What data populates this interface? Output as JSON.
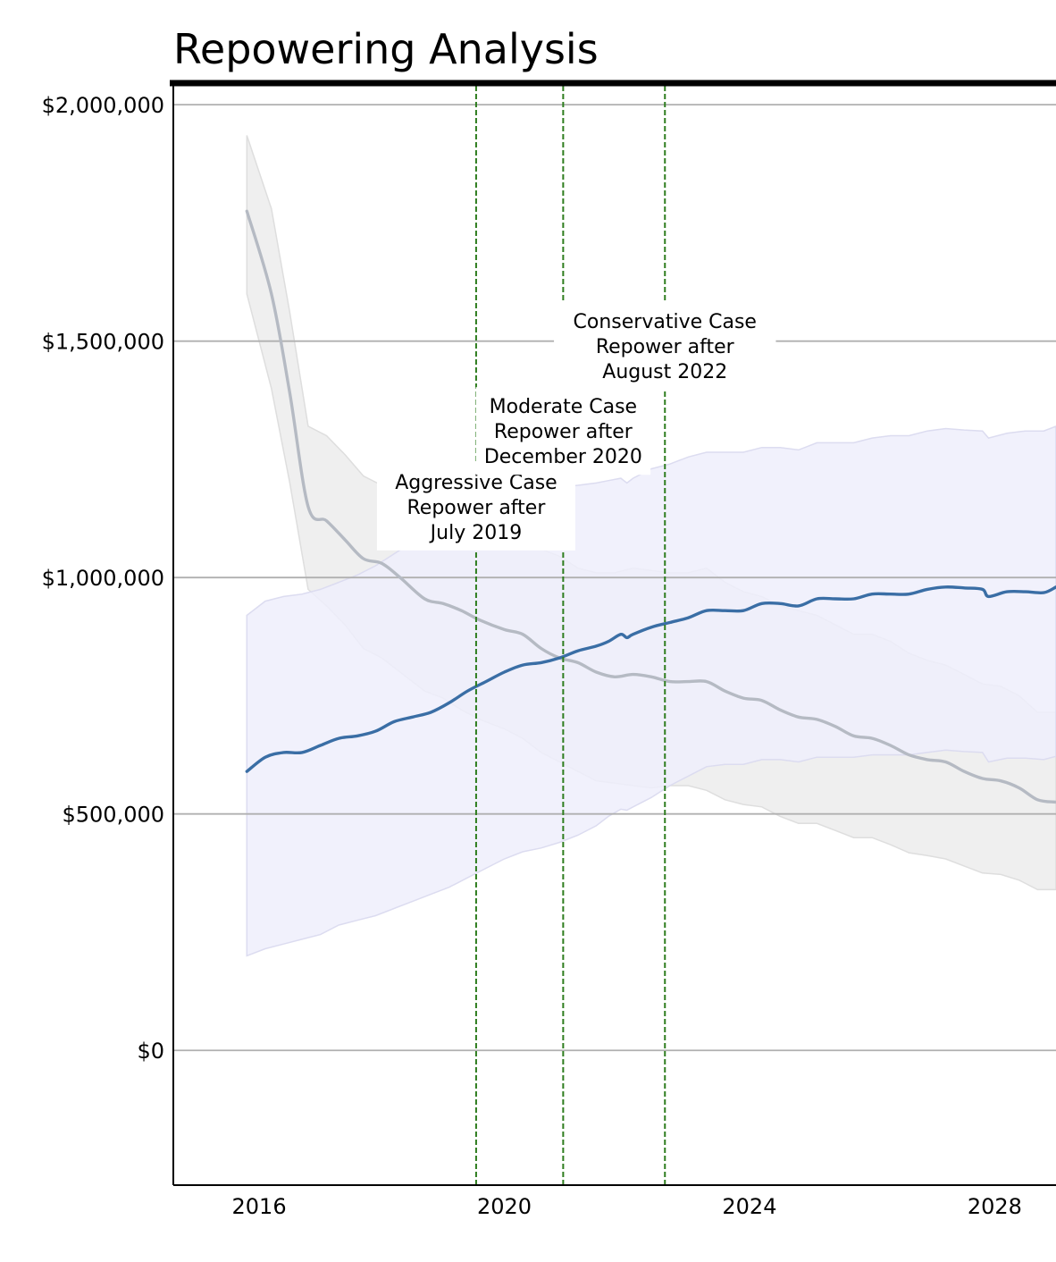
{
  "chart_data": {
    "type": "line",
    "title": "Repowering Analysis",
    "xlabel": "",
    "ylabel": "",
    "xlim": [
      2014.6,
      2029.0
    ],
    "ylim": [
      -285000,
      2040000
    ],
    "grid": "horizontal",
    "y_ticks": [
      {
        "value": 2000000,
        "label": "$2,000,000"
      },
      {
        "value": 1500000,
        "label": "$1,500,000"
      },
      {
        "value": 1000000,
        "label": "$1,000,000"
      },
      {
        "value": 500000,
        "label": "$500,000"
      },
      {
        "value": 0,
        "label": "$0"
      }
    ],
    "x_ticks": [
      {
        "value": 2016,
        "label": "2016"
      },
      {
        "value": 2020,
        "label": "2020"
      },
      {
        "value": 2024,
        "label": "2024"
      },
      {
        "value": 2028,
        "label": "2028"
      }
    ],
    "colors": {
      "rising_line": "#3a6ea5",
      "rising_band": "#eeeefb",
      "falling_line": "#b5bac3",
      "falling_band": "#ececec",
      "marker": "#2e7d1e",
      "grid": "#b0b0b0"
    },
    "series": [
      {
        "role": "falling",
        "x": [
          2015.8,
          2016.2,
          2016.5,
          2016.8,
          2017.1,
          2017.4,
          2017.7,
          2018.0,
          2018.3,
          2018.7,
          2019.0,
          2019.3,
          2019.6,
          2020.0,
          2020.3,
          2020.6,
          2020.9,
          2021.2,
          2021.5,
          2021.8,
          2022.1,
          2022.4,
          2022.7,
          2023.0,
          2023.3,
          2023.6,
          2023.9,
          2024.2,
          2024.5,
          2024.8,
          2025.1,
          2025.4,
          2025.7,
          2026.0,
          2026.3,
          2026.6,
          2026.9,
          2027.2,
          2027.5,
          2027.8,
          2028.1,
          2028.4,
          2028.7,
          2029.0
        ],
        "y": [
          1775000,
          1600000,
          1390000,
          1150000,
          1120000,
          1080000,
          1040000,
          1030000,
          1000000,
          955000,
          945000,
          930000,
          910000,
          890000,
          880000,
          850000,
          830000,
          820000,
          800000,
          790000,
          795000,
          790000,
          780000,
          780000,
          780000,
          760000,
          745000,
          740000,
          720000,
          705000,
          700000,
          685000,
          665000,
          660000,
          645000,
          625000,
          615000,
          610000,
          590000,
          575000,
          570000,
          555000,
          530000,
          525000
        ],
        "lower": [
          1600000,
          1400000,
          1200000,
          975000,
          940000,
          900000,
          850000,
          830000,
          800000,
          760000,
          745000,
          720000,
          700000,
          680000,
          660000,
          630000,
          610000,
          590000,
          570000,
          565000,
          560000,
          555000,
          560000,
          560000,
          550000,
          530000,
          520000,
          515000,
          495000,
          480000,
          480000,
          465000,
          450000,
          450000,
          435000,
          418000,
          412000,
          405000,
          390000,
          375000,
          372000,
          360000,
          340000,
          340000
        ],
        "upper": [
          1935000,
          1780000,
          1560000,
          1320000,
          1300000,
          1260000,
          1215000,
          1195000,
          1170000,
          1130000,
          1115000,
          1100000,
          1095000,
          1090000,
          1080000,
          1060000,
          1045000,
          1020000,
          1010000,
          1010000,
          1020000,
          1015000,
          1010000,
          1010000,
          1020000,
          990000,
          970000,
          960000,
          940000,
          930000,
          920000,
          900000,
          880000,
          880000,
          865000,
          840000,
          825000,
          815000,
          795000,
          775000,
          770000,
          750000,
          715000,
          715000
        ]
      },
      {
        "role": "rising",
        "x": [
          2015.8,
          2016.1,
          2016.4,
          2016.7,
          2017.0,
          2017.3,
          2017.6,
          2017.9,
          2018.2,
          2018.5,
          2018.8,
          2019.1,
          2019.4,
          2019.7,
          2020.0,
          2020.3,
          2020.6,
          2020.9,
          2021.2,
          2021.5,
          2021.7,
          2021.9,
          2022.0,
          2022.1,
          2022.4,
          2022.7,
          2023.0,
          2023.3,
          2023.6,
          2023.9,
          2024.2,
          2024.5,
          2024.8,
          2025.1,
          2025.4,
          2025.7,
          2026.0,
          2026.3,
          2026.6,
          2026.9,
          2027.2,
          2027.5,
          2027.8,
          2027.9,
          2028.2,
          2028.5,
          2028.8,
          2029.0
        ],
        "y": [
          590000,
          620000,
          630000,
          630000,
          645000,
          660000,
          665000,
          675000,
          695000,
          705000,
          715000,
          735000,
          760000,
          780000,
          800000,
          815000,
          820000,
          830000,
          845000,
          855000,
          865000,
          880000,
          873000,
          880000,
          895000,
          905000,
          915000,
          930000,
          930000,
          930000,
          945000,
          945000,
          940000,
          955000,
          955000,
          955000,
          965000,
          965000,
          965000,
          975000,
          980000,
          978000,
          975000,
          960000,
          970000,
          970000,
          968000,
          980000
        ],
        "lower": [
          200000,
          215000,
          225000,
          235000,
          245000,
          265000,
          275000,
          285000,
          300000,
          315000,
          330000,
          345000,
          365000,
          385000,
          405000,
          420000,
          428000,
          440000,
          455000,
          475000,
          495000,
          510000,
          508000,
          515000,
          535000,
          560000,
          580000,
          600000,
          605000,
          605000,
          615000,
          615000,
          610000,
          620000,
          620000,
          620000,
          625000,
          625000,
          625000,
          630000,
          635000,
          632000,
          630000,
          610000,
          618000,
          618000,
          615000,
          622000
        ],
        "upper": [
          920000,
          950000,
          960000,
          965000,
          975000,
          990000,
          1005000,
          1025000,
          1050000,
          1075000,
          1090000,
          1115000,
          1140000,
          1160000,
          1175000,
          1180000,
          1185000,
          1190000,
          1195000,
          1200000,
          1205000,
          1210000,
          1200000,
          1210000,
          1230000,
          1240000,
          1255000,
          1265000,
          1265000,
          1265000,
          1275000,
          1275000,
          1270000,
          1285000,
          1285000,
          1285000,
          1295000,
          1300000,
          1300000,
          1310000,
          1315000,
          1312000,
          1310000,
          1295000,
          1305000,
          1310000,
          1310000,
          1320000
        ]
      }
    ],
    "markers": [
      {
        "x": 2019.54,
        "lines": [
          "Aggressive Case",
          "Repower after",
          "July 2019"
        ],
        "label_y": 1150000
      },
      {
        "x": 2020.96,
        "lines": [
          "Moderate Case",
          "Repower after",
          "December 2020"
        ],
        "label_y": 1310000
      },
      {
        "x": 2022.62,
        "lines": [
          "Conservative Case",
          "Repower after",
          "August 2022"
        ],
        "label_y": 1490000
      }
    ]
  }
}
